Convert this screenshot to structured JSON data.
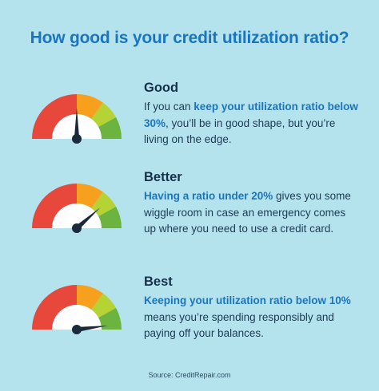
{
  "title": "How good is your credit utilization ratio?",
  "colors": {
    "background": "#b4e3ee",
    "title": "#1b75bc",
    "gauge_red": "#e8473b",
    "gauge_orange": "#f7a01e",
    "gauge_lightgreen": "#b5d334",
    "gauge_green": "#6db33f",
    "needle": "#1a2a3a"
  },
  "sections": [
    {
      "heading": "Good",
      "desc_pre": "If you can ",
      "desc_strong": "keep your utilization ratio below 30%",
      "desc_post": ", you’ll be in good shape, but you’re living on the edge.",
      "needle_level": 0.5
    },
    {
      "heading": "Better",
      "desc_pre": "",
      "desc_strong": "Having a ratio under 20%",
      "desc_post": " gives you some wiggle room in case an emergency comes up where you need to use a credit card.",
      "needle_level": 0.77
    },
    {
      "heading": "Best",
      "desc_pre": "",
      "desc_strong": "Keeping your utilization ratio below 10%",
      "desc_post": " means you’re spending responsibly and paying off your balances.",
      "needle_level": 0.96
    }
  ],
  "source": "Source: CreditRepair.com"
}
